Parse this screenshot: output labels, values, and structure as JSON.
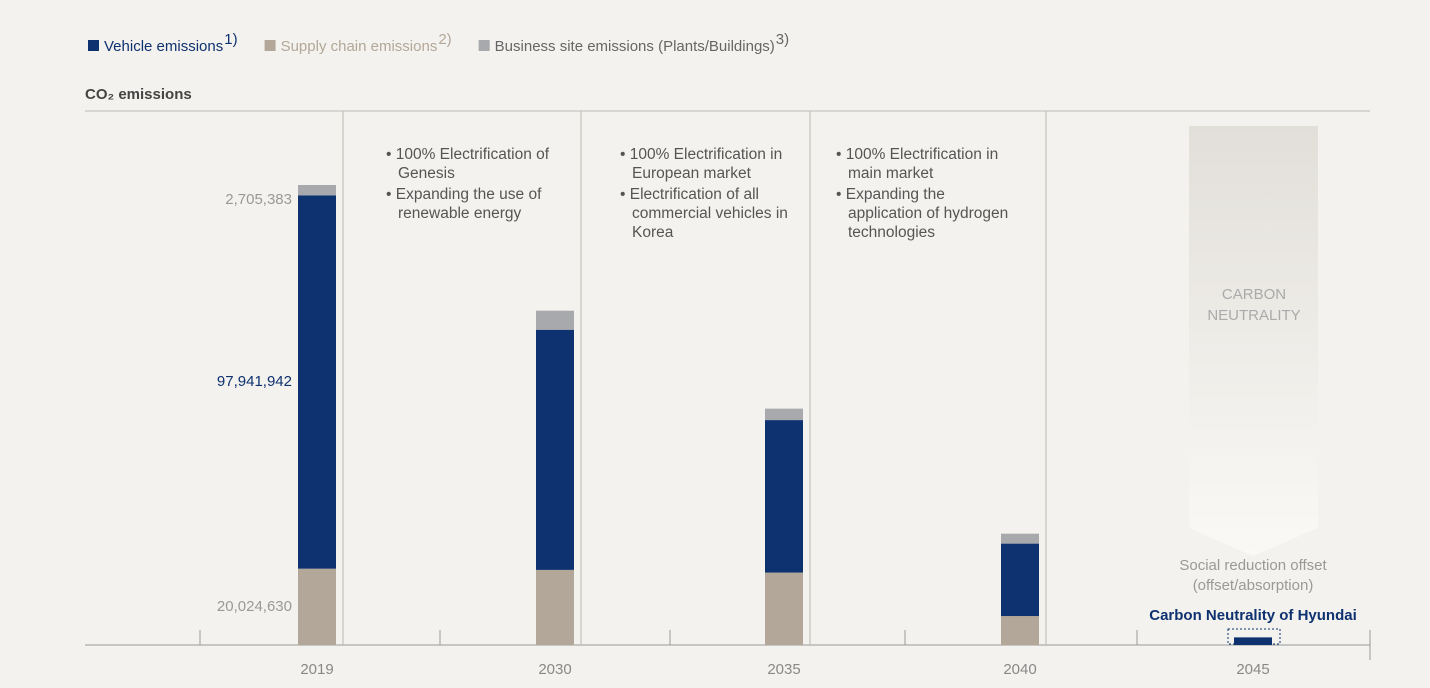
{
  "chart_data": {
    "type": "stacked_bar",
    "y_label": "CO₂ emissions",
    "categories": [
      "2019",
      "2030",
      "2035",
      "2040",
      "2045"
    ],
    "series": [
      {
        "name": "Supply chain emissions",
        "footnote": "2)",
        "color": "#b2a798",
        "values": [
          20024630,
          19700000,
          19000000,
          7600000,
          0
        ],
        "value_labels": [
          "20,024,630",
          null,
          null,
          null,
          null
        ]
      },
      {
        "name": "Vehicle emissions",
        "footnote": "1)",
        "color": "#0e3170",
        "values": [
          97941942,
          63000000,
          40000000,
          19000000,
          2000000
        ],
        "value_labels": [
          "97,941,942",
          null,
          null,
          null,
          null
        ]
      },
      {
        "name": "Business site emissions (Plants/Buildings)",
        "footnote": "3)",
        "color": "#a7a9ac",
        "values": [
          2705383,
          5000000,
          3000000,
          2600000,
          0
        ],
        "value_labels": [
          "2,705,383",
          null,
          null,
          null,
          null
        ]
      }
    ],
    "legend_order": [
      1,
      0,
      2
    ],
    "phases": [
      {
        "category": 1,
        "items": [
          "100% Electrification of Genesis",
          "Expanding the use of renewable energy"
        ]
      },
      {
        "category": 2,
        "items": [
          "100% Electrification in European market",
          "Electrification of all commercial vehicles in Korea"
        ]
      },
      {
        "category": 3,
        "items": [
          "100% Electrification in main market",
          "Expanding the application of hydrogen technologies"
        ]
      }
    ],
    "goal_arrow": "CARBON NEUTRALITY",
    "offset_note": "Social reduction offset (offset/absorption)",
    "goal_label": "Carbon Neutrality of Hyundai"
  }
}
